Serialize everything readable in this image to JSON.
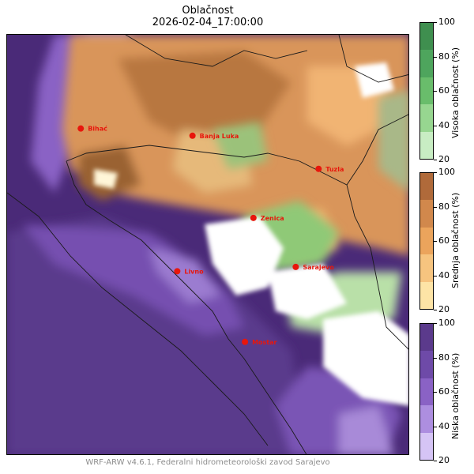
{
  "header": {
    "title": "Oblačnost",
    "timestamp": "2026-02-04_17:00:00"
  },
  "cities": [
    {
      "name": "Bihać",
      "lon": 15.87,
      "lat": 44.82
    },
    {
      "name": "Banja Luka",
      "lon": 17.19,
      "lat": 44.77
    },
    {
      "name": "Tuzla",
      "lon": 18.68,
      "lat": 44.54
    },
    {
      "name": "Zenica",
      "lon": 17.91,
      "lat": 44.2
    },
    {
      "name": "Sarajevo",
      "lon": 18.41,
      "lat": 43.86
    },
    {
      "name": "Livno",
      "lon": 17.01,
      "lat": 43.83
    },
    {
      "name": "Mostar",
      "lon": 17.81,
      "lat": 43.34
    }
  ],
  "colorbars": [
    {
      "label": "Visoka oblačnost (%)",
      "ticks": [
        "100",
        "80",
        "60",
        "40",
        "20"
      ],
      "colors": [
        "#3f8f4f",
        "#4ea55d",
        "#69bd6b",
        "#97d690",
        "#c8edc3"
      ]
    },
    {
      "label": "Srednja oblačnost (%)",
      "ticks": [
        "100",
        "80",
        "60",
        "40",
        "20"
      ],
      "colors": [
        "#b06a3a",
        "#d1884c",
        "#eba45c",
        "#f6c47f",
        "#fde4a6"
      ]
    },
    {
      "label": "Niska oblačnost (%)",
      "ticks": [
        "100",
        "80",
        "60",
        "40",
        "20"
      ],
      "colors": [
        "#5b3a8c",
        "#6e4aa8",
        "#8a62c5",
        "#ad8ee0",
        "#d5c4f5"
      ]
    }
  ],
  "footer": "WRF-ARW v4.6.1, Federalni hidrometeorološki zavod Sarajevo"
}
